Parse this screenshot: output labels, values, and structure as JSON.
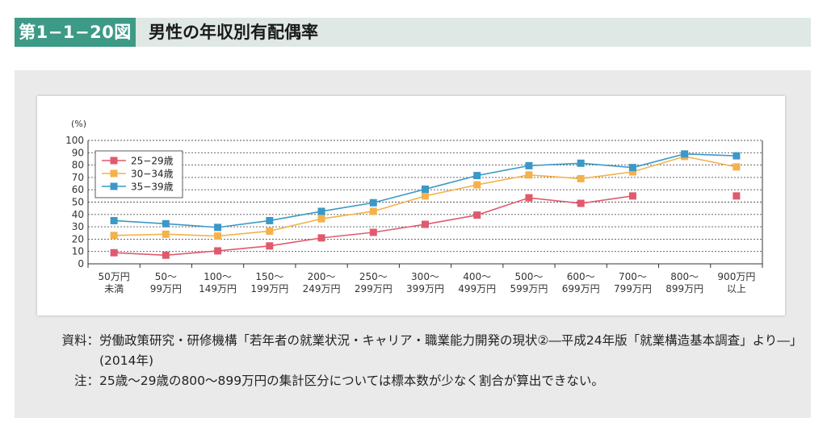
{
  "header": {
    "figure_number": "第1−1−20図",
    "title": "男性の年収別有配偶率"
  },
  "colors": {
    "header_accent": "#3d9a86",
    "header_bg": "#dfe8e4",
    "panel_bg": "#eaeaea"
  },
  "notes": {
    "source_label": "資料：",
    "source_text": "労働政策研究・研修機構「若年者の就業状況・キャリア・職業能力開発の現状②―平成24年版「就業構造基本調査」より―」(2014年)",
    "note_label": "注：",
    "note_text": "25歳〜29歳の800〜899万円の集計区分については標本数が少なく割合が算出できない。"
  },
  "chart_data": {
    "type": "line",
    "ylabel": "(%)",
    "ylim": [
      0,
      100
    ],
    "yticks": [
      0,
      10,
      20,
      30,
      40,
      50,
      60,
      70,
      80,
      90,
      100
    ],
    "grid": true,
    "legend_position": "top-left",
    "categories": [
      [
        "50万円",
        "未満"
      ],
      [
        "50〜",
        "99万円"
      ],
      [
        "100〜",
        "149万円"
      ],
      [
        "150〜",
        "199万円"
      ],
      [
        "200〜",
        "249万円"
      ],
      [
        "250〜",
        "299万円"
      ],
      [
        "300〜",
        "399万円"
      ],
      [
        "400〜",
        "499万円"
      ],
      [
        "500〜",
        "599万円"
      ],
      [
        "600〜",
        "699万円"
      ],
      [
        "700〜",
        "799万円"
      ],
      [
        "800〜",
        "899万円"
      ],
      [
        "900万円",
        "以上"
      ]
    ],
    "series": [
      {
        "name": "25−29歳",
        "color": "#e05a6e",
        "values": [
          9,
          7,
          10.5,
          14.5,
          21,
          25.5,
          32,
          39.5,
          53.5,
          49,
          55,
          null,
          55
        ]
      },
      {
        "name": "30−34歳",
        "color": "#f3b24b",
        "values": [
          23,
          24,
          22.5,
          26.5,
          36.5,
          42.5,
          55,
          64,
          72,
          69,
          74.5,
          87,
          78.5
        ]
      },
      {
        "name": "35−39歳",
        "color": "#3c98c7",
        "values": [
          35,
          32.5,
          29.5,
          35,
          42.5,
          49.5,
          60.5,
          71.5,
          79.5,
          81.5,
          78,
          89,
          87.5
        ]
      }
    ]
  }
}
